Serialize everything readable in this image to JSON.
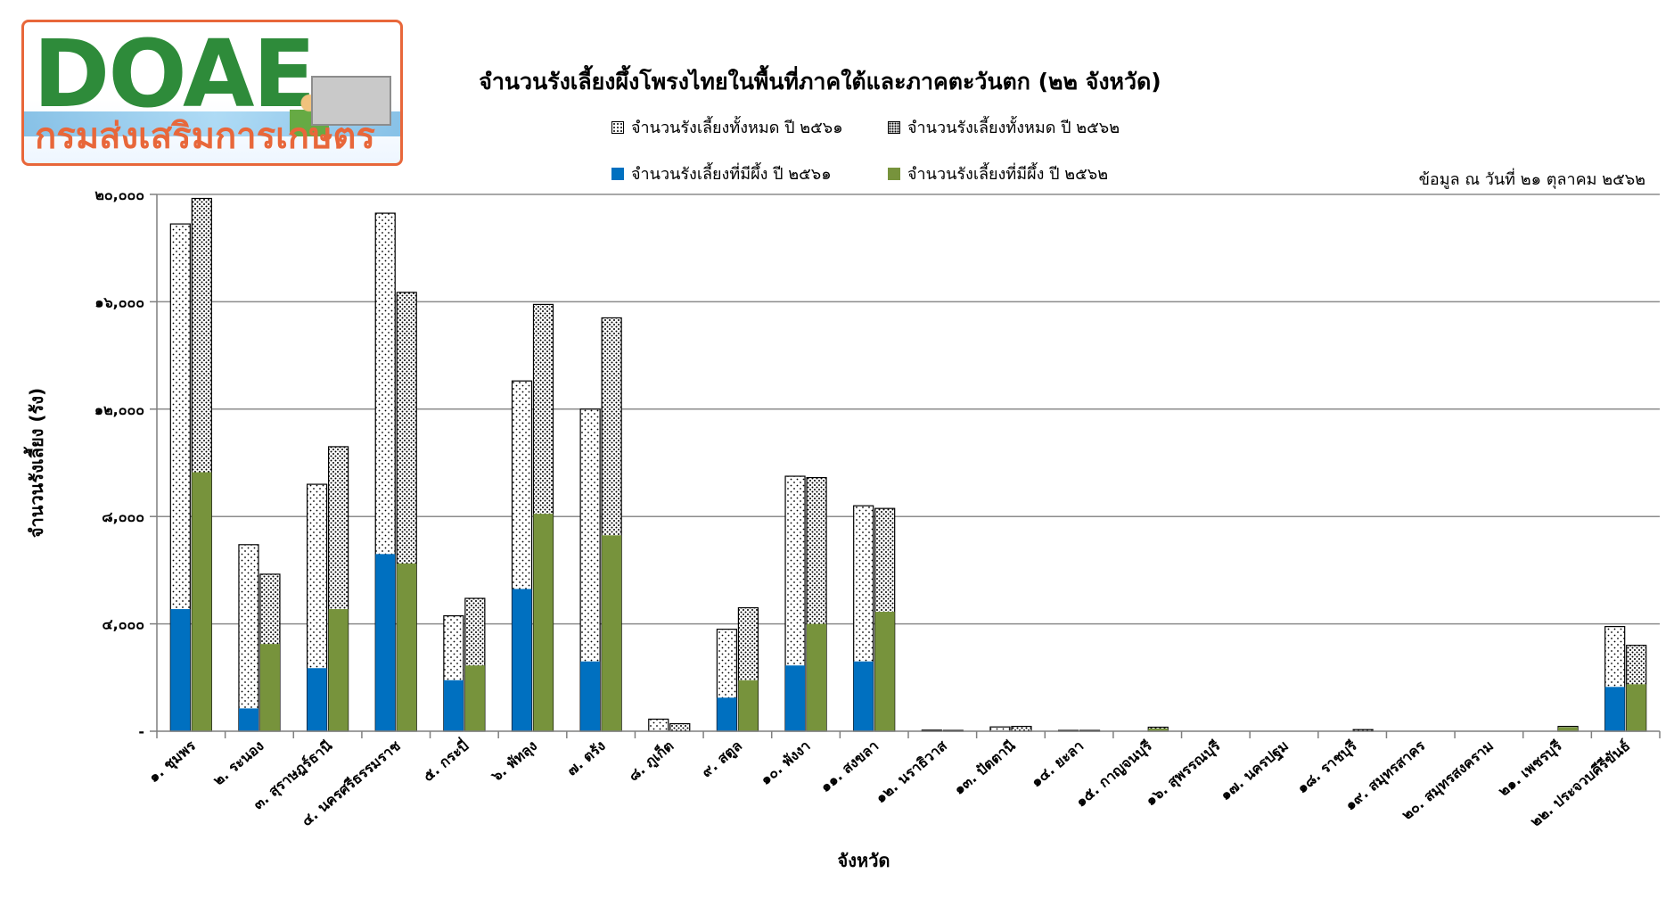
{
  "logo": {
    "mark": "DOAE",
    "text": "กรมส่งเสริมการเกษตร"
  },
  "colors": {
    "with_bees_2561": "#0070c0",
    "with_bees_2562": "#77933c",
    "grid": "#8c8c8c",
    "axis": "#7f7f7f"
  },
  "note": "ข้อมูล ณ วันที่ ๒๑ ตุลาคม ๒๕๖๒",
  "chart_data": {
    "type": "bar",
    "title": "จำนวนรังเลี้ยงผึ้งโพรงไทยในพื้นที่ภาคใต้และภาคตะวันตก (๒๒ จังหวัด)",
    "xlabel": "จังหวัด",
    "ylabel": "จำนวนรังเลี้ยง (รัง)",
    "ylim": [
      0,
      20000
    ],
    "y_ticks": [
      "-",
      "๔,๐๐๐",
      "๘,๐๐๐",
      "๑๒,๐๐๐",
      "๑๖,๐๐๐",
      "๒๐,๐๐๐"
    ],
    "grid": true,
    "legend_position": "top",
    "categories": [
      "๑. ชุมพร",
      "๒. ระนอง",
      "๓. สุราษฎร์ธานี",
      "๔. นครศรีธรรมราช",
      "๕. กระบี่",
      "๖. พัทลุง",
      "๗. ตรัง",
      "๘. ภูเก็ต",
      "๙. สตูล",
      "๑๐. พังงา",
      "๑๑. สงขลา",
      "๑๒. นราธิวาส",
      "๑๓. ปัตตานี",
      "๑๔. ยะลา",
      "๑๕. กาญจนบุรี",
      "๑๖. สุพรรณบุรี",
      "๑๗. นครปฐม",
      "๑๘. ราชบุรี",
      "๑๙. สมุทรสาคร",
      "๒๐. สมุทรสงคราม",
      "๒๑. เพชรบุรี",
      "๒๒. ประจวบคีรีขันธ์"
    ],
    "series": [
      {
        "name": "จำนวนรังเลี้ยงทั้งหมด ปี ๒๕๖๑",
        "values": [
          18900,
          6950,
          9200,
          19300,
          4300,
          13050,
          12000,
          450,
          3800,
          9500,
          8400,
          40,
          160,
          30,
          0,
          0,
          0,
          0,
          0,
          0,
          0,
          3900
        ]
      },
      {
        "name": "จำนวนรังเลี้ยงทั้งหมด ปี ๒๕๖๒",
        "values": [
          19850,
          5850,
          10600,
          16350,
          4950,
          15900,
          15400,
          280,
          4600,
          9450,
          8300,
          30,
          180,
          30,
          150,
          0,
          0,
          60,
          0,
          0,
          180,
          3200
        ]
      },
      {
        "name": "จำนวนรังเลี้ยงที่มีผึ้ง ปี ๒๕๖๑",
        "values": [
          4550,
          850,
          2350,
          6600,
          1900,
          5300,
          2600,
          0,
          1250,
          2450,
          2600,
          0,
          0,
          0,
          0,
          0,
          0,
          0,
          0,
          0,
          0,
          1650
        ]
      },
      {
        "name": "จำนวนรังเลี้ยงที่มีผึ้ง ปี ๒๕๖๒",
        "values": [
          9650,
          3250,
          4550,
          6250,
          2450,
          8100,
          7300,
          0,
          1900,
          4000,
          4450,
          0,
          0,
          0,
          100,
          0,
          0,
          0,
          0,
          0,
          150,
          1750
        ]
      }
    ]
  }
}
